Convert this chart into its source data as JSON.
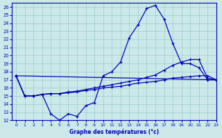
{
  "title": "Graphe des températures (°c)",
  "bg_color": "#cce8e8",
  "line_color": "#0000bb",
  "grid_color": "#99cccc",
  "xlim": [
    -0.5,
    23
  ],
  "ylim": [
    12,
    26.5
  ],
  "xticks": [
    0,
    1,
    2,
    3,
    4,
    5,
    6,
    7,
    8,
    9,
    10,
    11,
    12,
    13,
    14,
    15,
    16,
    17,
    18,
    19,
    20,
    21,
    22,
    23
  ],
  "yticks": [
    12,
    13,
    14,
    15,
    16,
    17,
    18,
    19,
    20,
    21,
    22,
    23,
    24,
    25,
    26
  ],
  "curve1_x": [
    0,
    1,
    2,
    3,
    4,
    5,
    6,
    7,
    8,
    9,
    10,
    11,
    12,
    13,
    14,
    15,
    16,
    17,
    18,
    19,
    20,
    21,
    22,
    23
  ],
  "curve1_y": [
    17.5,
    15.0,
    15.0,
    15.2,
    12.8,
    12.0,
    12.8,
    12.5,
    13.8,
    14.2,
    17.5,
    18.0,
    19.2,
    22.2,
    23.8,
    25.8,
    26.2,
    24.5,
    21.5,
    19.0,
    19.0,
    18.5,
    17.0,
    17.0
  ],
  "curve2_x": [
    0,
    23
  ],
  "curve2_y": [
    17.5,
    17.0
  ],
  "curve3_x": [
    0,
    1,
    2,
    3,
    4,
    5,
    6,
    7,
    8,
    9,
    10,
    11,
    12,
    13,
    14,
    15,
    16,
    17,
    18,
    19,
    20,
    21,
    22,
    23
  ],
  "curve3_y": [
    17.5,
    15.0,
    15.0,
    15.2,
    15.3,
    15.3,
    15.4,
    15.5,
    15.7,
    15.8,
    16.0,
    16.1,
    16.2,
    16.4,
    16.6,
    16.7,
    16.8,
    17.0,
    17.2,
    17.3,
    17.4,
    17.5,
    17.5,
    17.0
  ],
  "curve4_x": [
    0,
    1,
    2,
    3,
    4,
    5,
    6,
    7,
    8,
    9,
    10,
    11,
    12,
    13,
    14,
    15,
    16,
    17,
    18,
    19,
    20,
    21,
    22,
    23
  ],
  "curve4_y": [
    17.5,
    15.0,
    15.0,
    15.2,
    15.3,
    15.3,
    15.5,
    15.6,
    15.8,
    16.0,
    16.2,
    16.4,
    16.6,
    16.8,
    17.0,
    17.3,
    17.6,
    18.2,
    18.8,
    19.2,
    19.5,
    19.5,
    17.2,
    17.0
  ]
}
